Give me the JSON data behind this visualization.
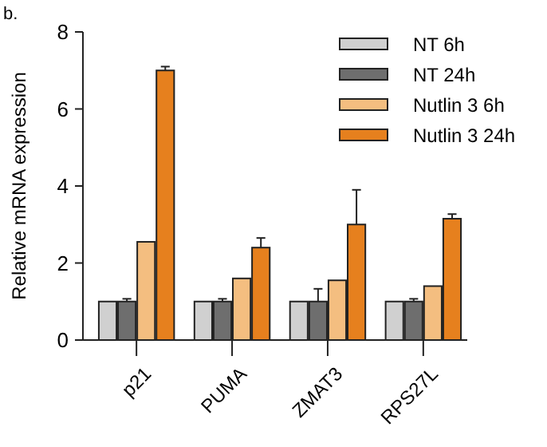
{
  "chart_data": {
    "type": "bar",
    "ylabel": "Relative mRNA expression",
    "annotations": [
      "b."
    ],
    "categories": [
      "p21",
      "PUMA",
      "ZMAT3",
      "RPS27L"
    ],
    "series": [
      {
        "name": "NT 6h",
        "color": "#d0d0d0",
        "values": [
          1,
          1,
          1,
          1
        ]
      },
      {
        "name": "NT 24h",
        "color": "#6e6e6e",
        "values": [
          1,
          1,
          1,
          1
        ],
        "errors": [
          0.07,
          0.07,
          0.33,
          0.07
        ]
      },
      {
        "name": "Nutlin 3 6h",
        "color": "#f4be80",
        "values": [
          2.55,
          1.6,
          1.55,
          1.4
        ]
      },
      {
        "name": "Nutlin 3 24h",
        "color": "#e6801e",
        "values": [
          7,
          2.4,
          3,
          3.15
        ],
        "errors": [
          0.1,
          0.25,
          0.9,
          0.12
        ]
      }
    ],
    "ylim": [
      0,
      8
    ],
    "yticks": [
      0,
      2,
      4,
      6,
      8
    ],
    "grid": false,
    "legend": "top right"
  }
}
